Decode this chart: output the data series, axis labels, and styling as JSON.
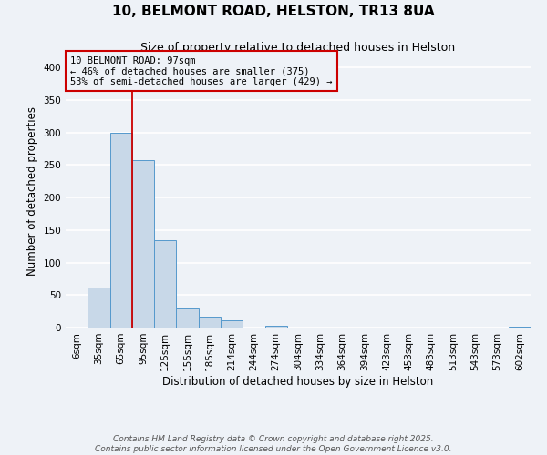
{
  "title": "10, BELMONT ROAD, HELSTON, TR13 8UA",
  "subtitle": "Size of property relative to detached houses in Helston",
  "xlabel": "Distribution of detached houses by size in Helston",
  "ylabel": "Number of detached properties",
  "bin_labels": [
    "6sqm",
    "35sqm",
    "65sqm",
    "95sqm",
    "125sqm",
    "155sqm",
    "185sqm",
    "214sqm",
    "244sqm",
    "274sqm",
    "304sqm",
    "334sqm",
    "364sqm",
    "394sqm",
    "423sqm",
    "453sqm",
    "483sqm",
    "513sqm",
    "543sqm",
    "573sqm",
    "602sqm"
  ],
  "bar_heights": [
    0,
    62,
    300,
    258,
    135,
    30,
    17,
    11,
    0,
    3,
    0,
    0,
    0,
    0,
    0,
    0,
    0,
    0,
    0,
    0,
    1
  ],
  "bar_color": "#c8d8e8",
  "bar_edgecolor": "#5599cc",
  "ylim": [
    0,
    420
  ],
  "yticks": [
    0,
    50,
    100,
    150,
    200,
    250,
    300,
    350,
    400
  ],
  "property_line_bin_index": 3,
  "property_line_color": "#cc0000",
  "annotation_text": "10 BELMONT ROAD: 97sqm\n← 46% of detached houses are smaller (375)\n53% of semi-detached houses are larger (429) →",
  "annotation_box_edgecolor": "#cc0000",
  "footer_line1": "Contains HM Land Registry data © Crown copyright and database right 2025.",
  "footer_line2": "Contains public sector information licensed under the Open Government Licence v3.0.",
  "background_color": "#eef2f7",
  "grid_color": "#ffffff",
  "title_fontsize": 11,
  "subtitle_fontsize": 9,
  "axis_label_fontsize": 8.5,
  "tick_fontsize": 7.5,
  "footer_fontsize": 6.5,
  "annotation_fontsize": 7.5
}
